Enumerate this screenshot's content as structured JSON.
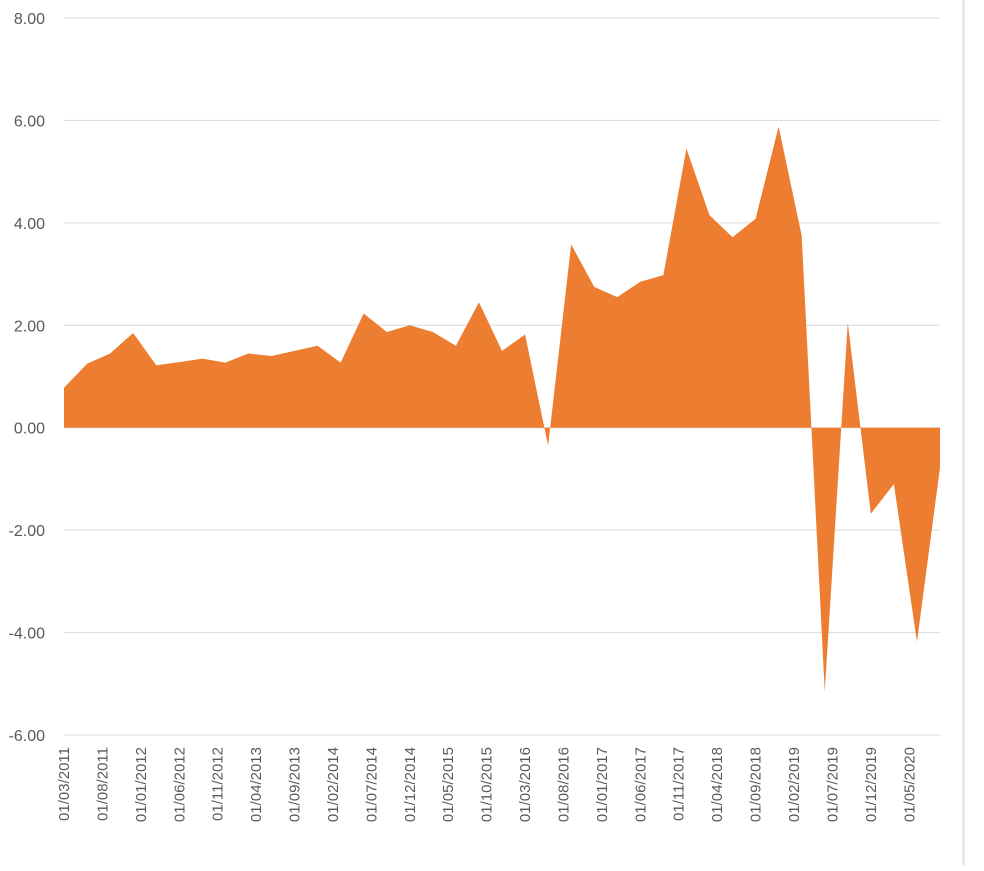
{
  "chart_data": {
    "type": "area",
    "title": "",
    "xlabel": "",
    "ylabel": "",
    "ylim": [
      -6,
      8
    ],
    "y_ticks": [
      "8.00",
      "6.00",
      "4.00",
      "2.00",
      "0.00",
      "-2.00",
      "-4.00",
      "-6.00"
    ],
    "y_tick_values": [
      8,
      6,
      4,
      2,
      0,
      -2,
      -4,
      -6
    ],
    "x_tick_labels": [
      "01/03/2011",
      "01/08/2011",
      "01/01/2012",
      "01/06/2012",
      "01/11/2012",
      "01/04/2013",
      "01/09/2013",
      "01/02/2014",
      "01/07/2014",
      "01/12/2014",
      "01/05/2015",
      "01/10/2015",
      "01/03/2016",
      "01/08/2016",
      "01/01/2017",
      "01/06/2017",
      "01/11/2017",
      "01/04/2018",
      "01/09/2018",
      "01/02/2019",
      "01/07/2019",
      "01/12/2019",
      "01/05/2020"
    ],
    "grid": true,
    "color": "#ED7D31",
    "series": [
      {
        "x": [
          "01/03/2011",
          "01/06/2011",
          "01/09/2011",
          "01/12/2011",
          "01/03/2012",
          "01/06/2012",
          "01/09/2012",
          "01/12/2012",
          "01/03/2013",
          "01/06/2013",
          "01/09/2013",
          "01/12/2013",
          "01/03/2014",
          "01/06/2014",
          "01/09/2014",
          "01/12/2014",
          "01/03/2015",
          "01/06/2015",
          "01/09/2015",
          "01/12/2015",
          "01/03/2016",
          "01/06/2016",
          "01/09/2016",
          "01/12/2016",
          "01/03/2017",
          "01/06/2017",
          "01/09/2017",
          "01/12/2017",
          "01/03/2018",
          "01/06/2018",
          "01/09/2018",
          "01/12/2018",
          "01/03/2019",
          "01/06/2019",
          "01/09/2019",
          "01/12/2019",
          "01/03/2020",
          "01/06/2020",
          "01/09/2020"
        ],
        "values": [
          0.78,
          1.25,
          1.45,
          1.85,
          1.22,
          1.28,
          1.35,
          1.27,
          1.45,
          1.4,
          1.5,
          1.6,
          1.27,
          2.23,
          1.87,
          2.0,
          1.87,
          1.6,
          2.45,
          1.5,
          1.82,
          -0.35,
          3.58,
          2.75,
          2.55,
          2.85,
          2.98,
          5.45,
          4.15,
          3.72,
          4.08,
          5.88,
          3.75,
          -5.15,
          2.05,
          -1.68,
          -1.1,
          -4.18,
          -0.78
        ]
      }
    ]
  }
}
